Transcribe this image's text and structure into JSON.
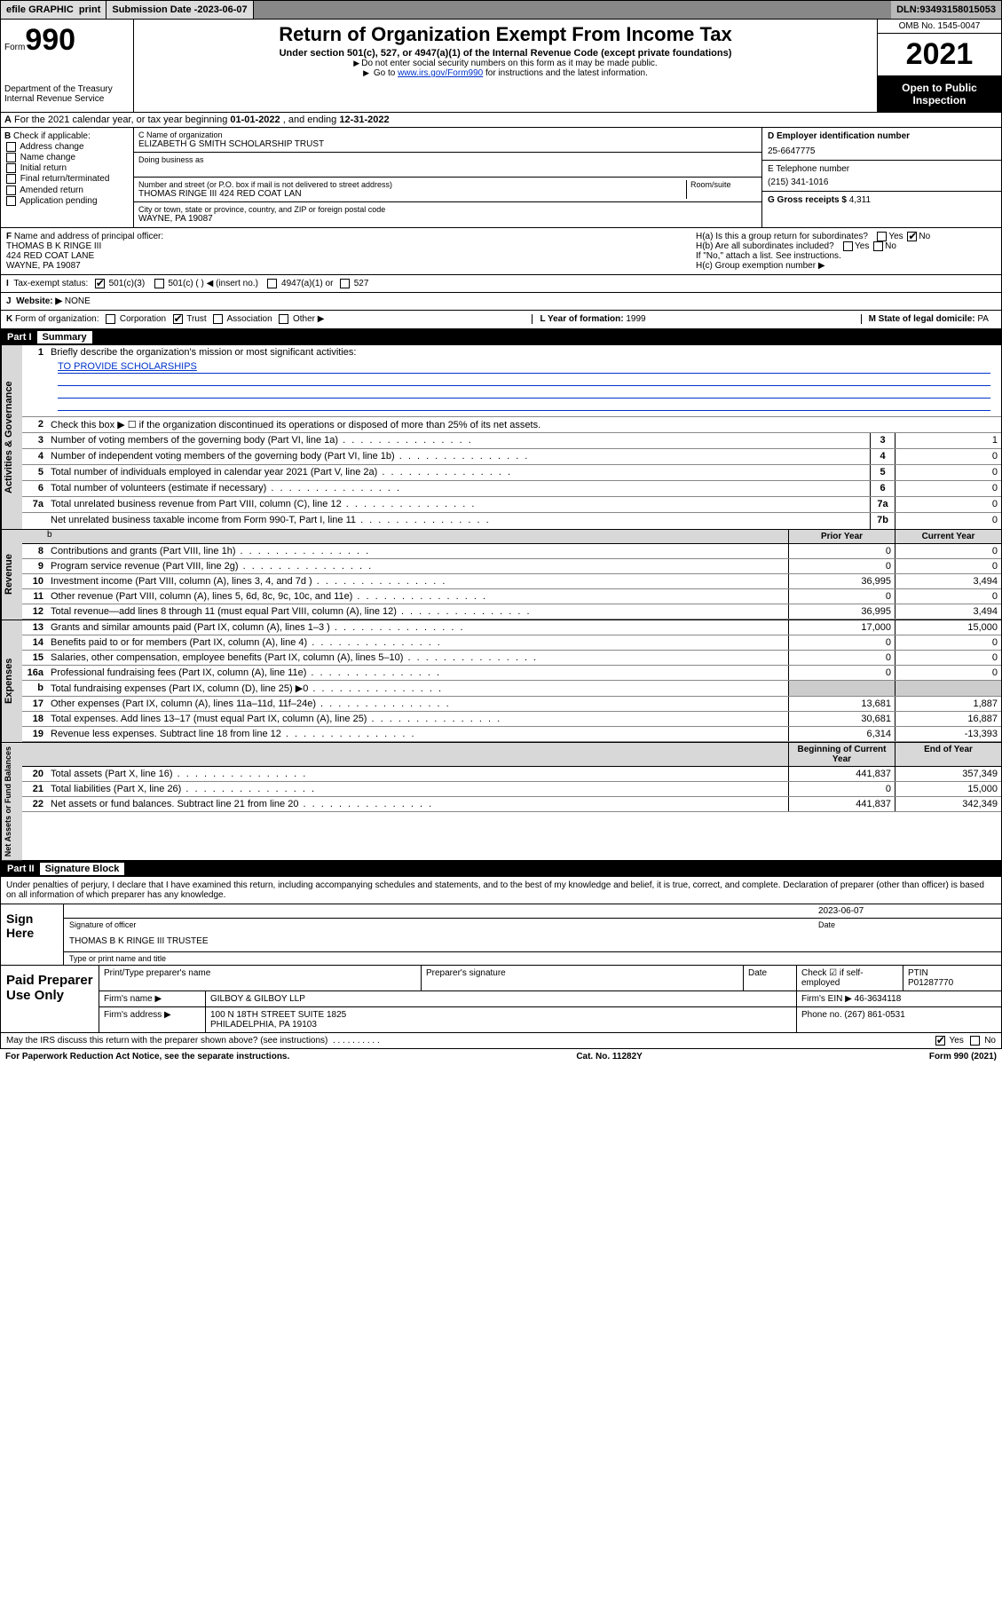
{
  "topbar": {
    "efile": "efile GRAPHIC",
    "print": "print",
    "sub_label": "Submission Date - ",
    "sub_date": "2023-06-07",
    "dln_label": "DLN: ",
    "dln": "93493158015053"
  },
  "header": {
    "form_label": "Form",
    "form_num": "990",
    "dept": "Department of the Treasury\nInternal Revenue Service",
    "title": "Return of Organization Exempt From Income Tax",
    "subtitle": "Under section 501(c), 527, or 4947(a)(1) of the Internal Revenue Code (except private foundations)",
    "note1": "Do not enter social security numbers on this form as it may be made public.",
    "note2_pre": "Go to ",
    "note2_link": "www.irs.gov/Form990",
    "note2_post": " for instructions and the latest information.",
    "omb": "OMB No. 1545-0047",
    "year": "2021",
    "open": "Open to Public Inspection"
  },
  "row_a": {
    "text_pre": "For the 2021 calendar year, or tax year beginning ",
    "begin": "01-01-2022",
    "mid": " , and ending ",
    "end": "12-31-2022",
    "lead": "A"
  },
  "col_b": {
    "lead": "B",
    "label": " Check if applicable:",
    "items": [
      "Address change",
      "Name change",
      "Initial return",
      "Final return/terminated",
      "Amended return",
      "Application pending"
    ]
  },
  "col_c": {
    "c_label": "C Name of organization",
    "c_val": "ELIZABETH G SMITH SCHOLARSHIP TRUST",
    "dba": "Doing business as",
    "addr_label": "Number and street (or P.O. box if mail is not delivered to street address)",
    "room_label": "Room/suite",
    "addr_val": "THOMAS RINGE III 424 RED COAT LAN",
    "city_label": "City or town, state or province, country, and ZIP or foreign postal code",
    "city_val": "WAYNE, PA  19087"
  },
  "col_d": {
    "d_label": "D Employer identification number",
    "d_val": "25-6647775",
    "e_label": "E Telephone number",
    "e_val": "(215) 341-1016",
    "g_label": "G Gross receipts $ ",
    "g_val": "4,311"
  },
  "row_f": {
    "f_label": "F",
    "f_text": " Name and address of principal officer:",
    "f_name": "THOMAS B K RINGE III",
    "f_addr1": "424 RED COAT LANE",
    "f_addr2": "WAYNE, PA  19087"
  },
  "row_h": {
    "ha": "H(a)  Is this a group return for subordinates?",
    "ha_ans": "No",
    "hb": "H(b)  Are all subordinates included?",
    "hb_note": "If \"No,\" attach a list. See instructions.",
    "hc": "H(c)  Group exemption number ▶"
  },
  "row_i": {
    "lead": "I",
    "label": "Tax-exempt status:",
    "opt1": "501(c)(3)",
    "opt2": "501(c) (  ) ◀ (insert no.)",
    "opt3": "4947(a)(1) or",
    "opt4": "527"
  },
  "row_j": {
    "lead": "J",
    "label": "Website: ▶",
    "val": "NONE"
  },
  "row_k": {
    "lead": "K",
    "label": " Form of organization:",
    "opts": [
      "Corporation",
      "Trust",
      "Association",
      "Other ▶"
    ],
    "checked": "Trust",
    "l_label": "L Year of formation: ",
    "l_val": "1999",
    "m_label": "M State of legal domicile: ",
    "m_val": "PA"
  },
  "part1": {
    "label": "Part I",
    "title": "Summary",
    "q1": "Briefly describe the organization's mission or most significant activities:",
    "mission": "TO PROVIDE SCHOLARSHIPS",
    "q2": "Check this box ▶ ☐ if the organization discontinued its operations or disposed of more than 25% of its net assets.",
    "rows_gov": [
      {
        "n": "3",
        "d": "Number of voting members of the governing body (Part VI, line 1a)",
        "box": "3",
        "v": "1"
      },
      {
        "n": "4",
        "d": "Number of independent voting members of the governing body (Part VI, line 1b)",
        "box": "4",
        "v": "0"
      },
      {
        "n": "5",
        "d": "Total number of individuals employed in calendar year 2021 (Part V, line 2a)",
        "box": "5",
        "v": "0"
      },
      {
        "n": "6",
        "d": "Total number of volunteers (estimate if necessary)",
        "box": "6",
        "v": "0"
      },
      {
        "n": "7a",
        "d": "Total unrelated business revenue from Part VIII, column (C), line 12",
        "box": "7a",
        "v": "0"
      },
      {
        "n": "",
        "d": "Net unrelated business taxable income from Form 990-T, Part I, line 11",
        "box": "7b",
        "v": "0"
      }
    ],
    "hdr_prior": "Prior Year",
    "hdr_curr": "Current Year",
    "rows_rev": [
      {
        "n": "8",
        "d": "Contributions and grants (Part VIII, line 1h)",
        "p": "0",
        "c": "0"
      },
      {
        "n": "9",
        "d": "Program service revenue (Part VIII, line 2g)",
        "p": "0",
        "c": "0"
      },
      {
        "n": "10",
        "d": "Investment income (Part VIII, column (A), lines 3, 4, and 7d )",
        "p": "36,995",
        "c": "3,494"
      },
      {
        "n": "11",
        "d": "Other revenue (Part VIII, column (A), lines 5, 6d, 8c, 9c, 10c, and 11e)",
        "p": "0",
        "c": "0"
      },
      {
        "n": "12",
        "d": "Total revenue—add lines 8 through 11 (must equal Part VIII, column (A), line 12)",
        "p": "36,995",
        "c": "3,494"
      }
    ],
    "rows_exp": [
      {
        "n": "13",
        "d": "Grants and similar amounts paid (Part IX, column (A), lines 1–3 )",
        "p": "17,000",
        "c": "15,000"
      },
      {
        "n": "14",
        "d": "Benefits paid to or for members (Part IX, column (A), line 4)",
        "p": "0",
        "c": "0"
      },
      {
        "n": "15",
        "d": "Salaries, other compensation, employee benefits (Part IX, column (A), lines 5–10)",
        "p": "0",
        "c": "0"
      },
      {
        "n": "16a",
        "d": "Professional fundraising fees (Part IX, column (A), line 11e)",
        "p": "0",
        "c": "0"
      },
      {
        "n": "b",
        "d": "Total fundraising expenses (Part IX, column (D), line 25) ▶0",
        "p": "",
        "c": "",
        "shade": true
      },
      {
        "n": "17",
        "d": "Other expenses (Part IX, column (A), lines 11a–11d, 11f–24e)",
        "p": "13,681",
        "c": "1,887"
      },
      {
        "n": "18",
        "d": "Total expenses. Add lines 13–17 (must equal Part IX, column (A), line 25)",
        "p": "30,681",
        "c": "16,887"
      },
      {
        "n": "19",
        "d": "Revenue less expenses. Subtract line 18 from line 12",
        "p": "6,314",
        "c": "-13,393"
      }
    ],
    "hdr_begin": "Beginning of Current Year",
    "hdr_end": "End of Year",
    "rows_na": [
      {
        "n": "20",
        "d": "Total assets (Part X, line 16)",
        "p": "441,837",
        "c": "357,349"
      },
      {
        "n": "21",
        "d": "Total liabilities (Part X, line 26)",
        "p": "0",
        "c": "15,000"
      },
      {
        "n": "22",
        "d": "Net assets or fund balances. Subtract line 21 from line 20",
        "p": "441,837",
        "c": "342,349"
      }
    ]
  },
  "vtabs": {
    "gov": "Activities & Governance",
    "rev": "Revenue",
    "exp": "Expenses",
    "na": "Net Assets or Fund Balances"
  },
  "part2": {
    "label": "Part II",
    "title": "Signature Block",
    "decl": "Under penalties of perjury, I declare that I have examined this return, including accompanying schedules and statements, and to the best of my knowledge and belief, it is true, correct, and complete. Declaration of preparer (other than officer) is based on all information of which preparer has any knowledge.",
    "sign_here": "Sign Here",
    "sig_officer": "Signature of officer",
    "sig_date": "Date",
    "sig_date_val": "2023-06-07",
    "officer_name": "THOMAS B K RINGE III TRUSTEE",
    "type_name": "Type or print name and title",
    "paid": "Paid Preparer Use Only",
    "prep_name_lbl": "Print/Type preparer's name",
    "prep_sig_lbl": "Preparer's signature",
    "date_lbl": "Date",
    "self_emp": "Check ☑ if self-employed",
    "ptin_lbl": "PTIN",
    "ptin": "P01287770",
    "firm_name_lbl": "Firm's name   ▶",
    "firm_name": "GILBOY & GILBOY LLP",
    "firm_ein_lbl": "Firm's EIN ▶",
    "firm_ein": "46-3634118",
    "firm_addr_lbl": "Firm's address ▶",
    "firm_addr1": "100 N 18TH STREET SUITE 1825",
    "firm_addr2": "PHILADELPHIA, PA  19103",
    "phone_lbl": "Phone no. ",
    "phone": "(267) 861-0531"
  },
  "footer": {
    "discuss": "May the IRS discuss this return with the preparer shown above? (see instructions)",
    "yes": "Yes",
    "no": "No",
    "pra": "For Paperwork Reduction Act Notice, see the separate instructions.",
    "cat": "Cat. No. 11282Y",
    "form": "Form 990 (2021)"
  }
}
